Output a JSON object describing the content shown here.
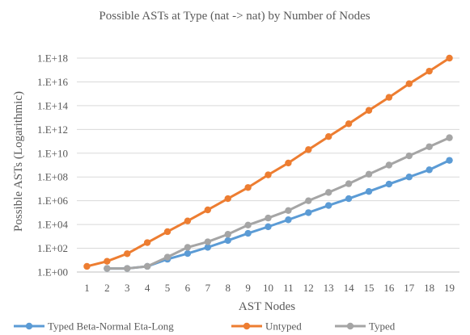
{
  "chart_data": {
    "type": "line",
    "title": "Possible ASTs at Type (nat -> nat) by Number of Nodes",
    "xlabel": "AST Nodes",
    "ylabel": "Possible ASTs (Logarithmic)",
    "yscale": "log",
    "ylim": [
      1,
      1e+18
    ],
    "grid": true,
    "legend_position": "bottom",
    "x": [
      1,
      2,
      3,
      4,
      5,
      6,
      7,
      8,
      9,
      10,
      11,
      12,
      13,
      14,
      15,
      16,
      17,
      18,
      19
    ],
    "x_tick_labels": [
      "1",
      "2",
      "3",
      "4",
      "5",
      "6",
      "7",
      "8",
      "9",
      "10",
      "11",
      "12",
      "13",
      "14",
      "15",
      "16",
      "17",
      "18",
      "19"
    ],
    "y_tick_values": [
      1,
      100,
      10000,
      1000000,
      100000000,
      10000000000,
      1000000000000,
      100000000000000,
      10000000000000000,
      1000000000000000000
    ],
    "y_tick_labels": [
      "1.E+00",
      "1.E+02",
      "1.E+04",
      "1.E+06",
      "1.E+08",
      "1.E+10",
      "1.E+12",
      "1.E+14",
      "1.E+16",
      "1.E+18"
    ],
    "series": [
      {
        "name": "Typed Beta-Normal Eta-Long",
        "color": "#5b9bd5",
        "values": [
          null,
          2,
          2,
          3,
          12,
          36,
          120,
          450,
          1800,
          6500,
          25000,
          100000,
          400000,
          1500000,
          6000000,
          25000000,
          100000000,
          400000000,
          2500000000
        ]
      },
      {
        "name": "Untyped",
        "color": "#ed7d31",
        "values": [
          3,
          8,
          35,
          300,
          2500,
          20000,
          170000,
          1500000,
          13000000,
          150000000,
          1500000000,
          20000000000,
          250000000000,
          3000000000000,
          40000000000000,
          500000000000000,
          7000000000000000,
          80000000000000000,
          1000000000000000000
        ]
      },
      {
        "name": "Typed",
        "color": "#a5a5a5",
        "values": [
          null,
          2,
          2,
          3,
          18,
          120,
          350,
          1500,
          9000,
          35000,
          150000,
          1000000,
          5000000,
          27000000,
          170000000,
          1000000000,
          6000000000,
          35000000000,
          200000000000
        ]
      }
    ]
  }
}
